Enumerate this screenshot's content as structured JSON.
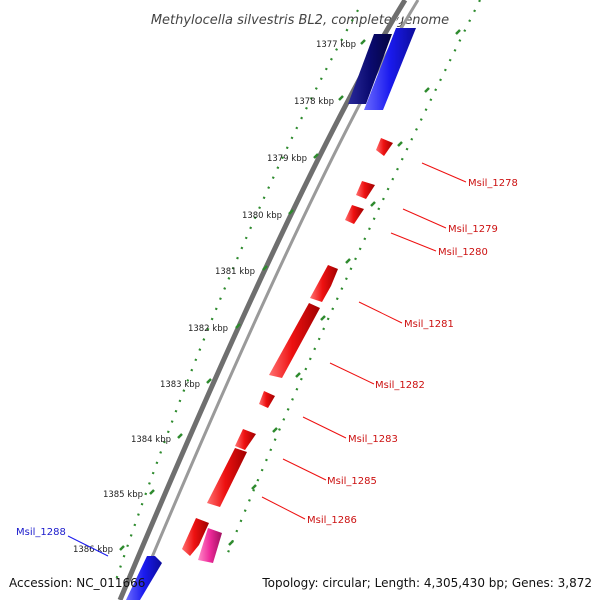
{
  "title": "Methylocella silvestris BL2, complete genome",
  "footer": {
    "accession": "Accession: NC_011666",
    "summary": "Topology: circular; Length: 4,305,430 bp; Genes: 3,872"
  },
  "colors": {
    "backbone": "#8a8a8a",
    "tick_green": "#2e8b2e",
    "forward_gene": "#1a1aee",
    "forward_gene_dark": "#0a0a70",
    "reverse_gene": "#ee1111",
    "pink_gene": "#ee2a9a",
    "label_red": "#cc1111",
    "label_blue": "#1a1acc"
  },
  "tick_labels": [
    "1377 kbp",
    "1378 kbp",
    "1379 kbp",
    "1380 kbp",
    "1381 kbp",
    "1382 kbp",
    "1383 kbp",
    "1384 kbp",
    "1385 kbp",
    "1386 kbp"
  ],
  "gene_labels": [
    {
      "name": "Msil_1278",
      "strand": "reverse"
    },
    {
      "name": "Msil_1279",
      "strand": "reverse"
    },
    {
      "name": "Msil_1280",
      "strand": "reverse"
    },
    {
      "name": "Msil_1281",
      "strand": "reverse"
    },
    {
      "name": "Msil_1282",
      "strand": "reverse"
    },
    {
      "name": "Msil_1283",
      "strand": "reverse"
    },
    {
      "name": "Msil_1285",
      "strand": "reverse"
    },
    {
      "name": "Msil_1286",
      "strand": "reverse"
    },
    {
      "name": "Msil_1288",
      "strand": "forward"
    }
  ]
}
